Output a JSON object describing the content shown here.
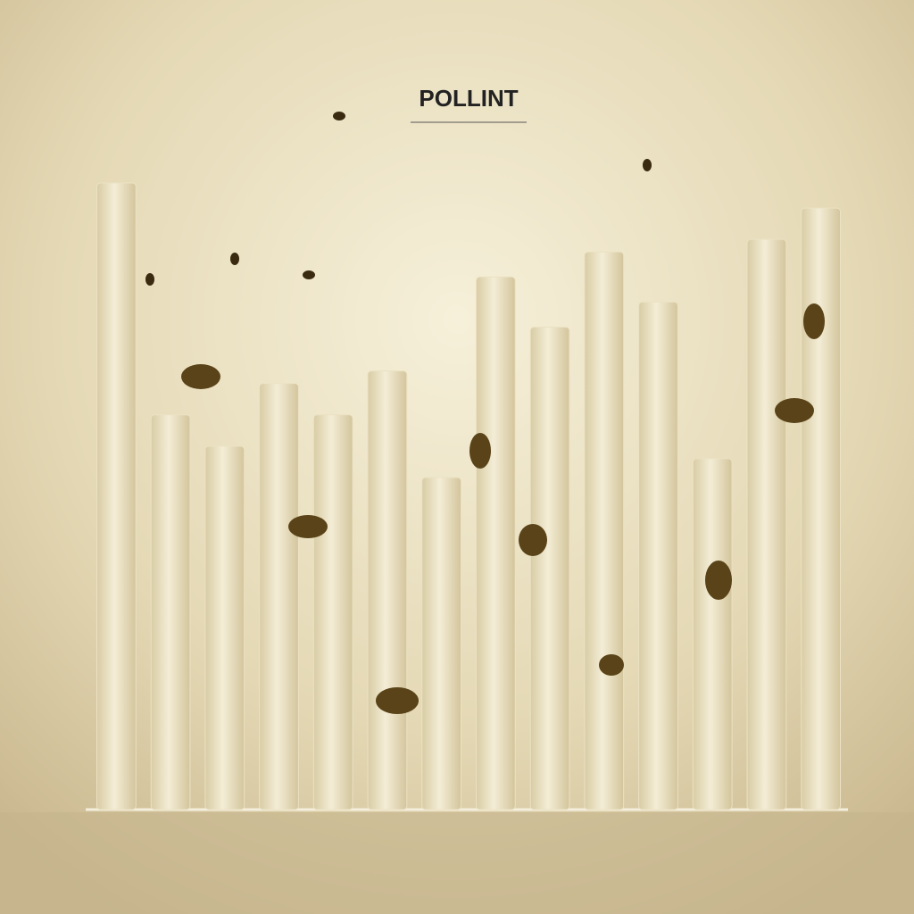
{
  "chart_data": {
    "type": "bar",
    "title": "POLLINT",
    "categories": [
      null,
      null,
      null,
      null,
      null,
      null,
      null,
      null,
      null,
      null,
      null,
      null,
      null,
      null
    ],
    "values": [
      100,
      63,
      58,
      68,
      63,
      70,
      53,
      85,
      77,
      89,
      81,
      56,
      91,
      96
    ],
    "color": "#ebe2c4",
    "ylim": [
      0,
      100
    ]
  }
}
